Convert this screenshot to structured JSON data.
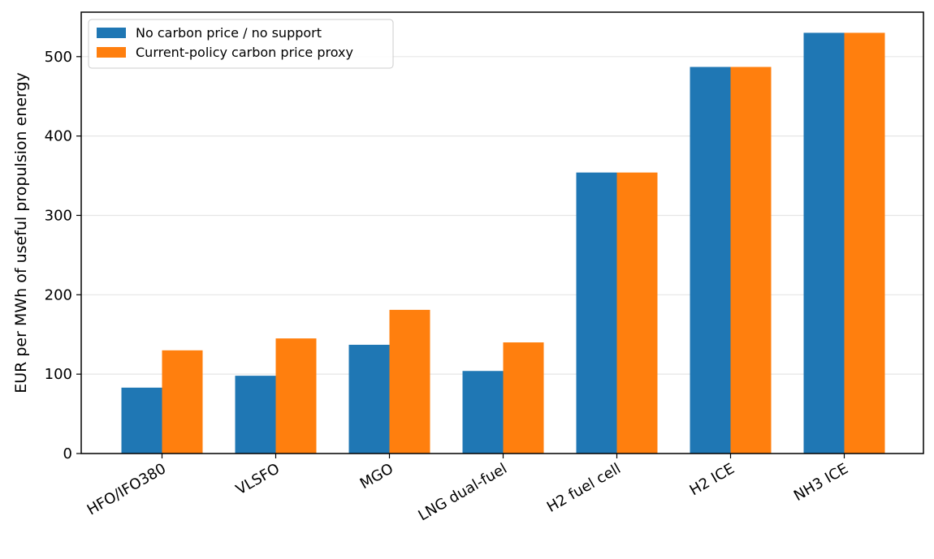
{
  "chart_data": {
    "type": "bar",
    "title": "",
    "xlabel": "",
    "ylabel": "EUR per MWh of useful propulsion energy",
    "categories": [
      "HFO/IFO380",
      "VLSFO",
      "MGO",
      "LNG dual-fuel",
      "H2 fuel cell",
      "H2 ICE",
      "NH3 ICE"
    ],
    "series": [
      {
        "name": "No carbon price / no support",
        "color": "#1f77b4",
        "values": [
          83,
          98,
          137,
          104,
          354,
          487,
          530
        ]
      },
      {
        "name": "Current-policy carbon price proxy",
        "color": "#ff7f0e",
        "values": [
          130,
          145,
          181,
          140,
          354,
          487,
          530
        ]
      }
    ],
    "ylim": [
      0,
      556
    ],
    "yticks": [
      0,
      100,
      200,
      300,
      400,
      500
    ],
    "grid": "y",
    "legend_position": "top-left"
  }
}
